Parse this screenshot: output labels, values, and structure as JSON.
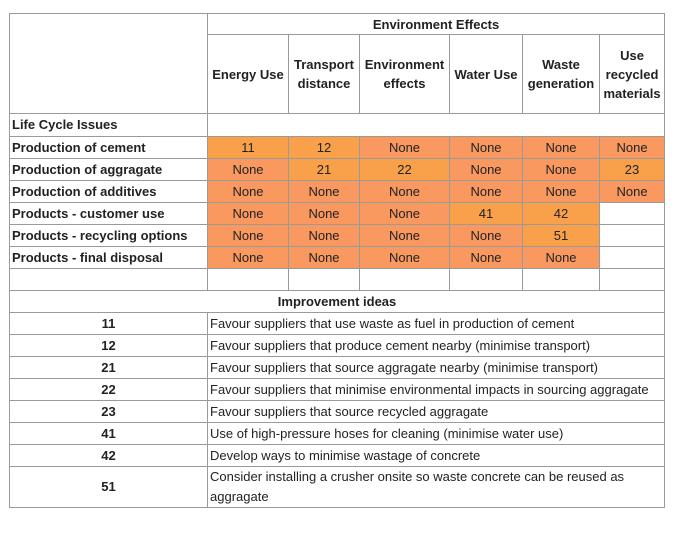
{
  "table_title": "Environment Effects",
  "columns": [
    {
      "lines": [
        "Energy Use"
      ]
    },
    {
      "lines": [
        "Transport",
        "distance"
      ]
    },
    {
      "lines": [
        "Environment",
        "effects"
      ]
    },
    {
      "lines": [
        "Water Use"
      ]
    },
    {
      "lines": [
        "Waste",
        "generation"
      ]
    },
    {
      "lines": [
        "Use",
        "recycled",
        "materials"
      ]
    }
  ],
  "section_label": "Life Cycle Issues",
  "colors": {
    "orange": "#f9a04b",
    "salmon": "#f9985f",
    "border": "#9a9a9a"
  },
  "rows": [
    {
      "label": "Production of cement",
      "cells": [
        {
          "text": "11",
          "color": "#f9a04b"
        },
        {
          "text": "12",
          "color": "#f9a04b"
        },
        {
          "text": "None",
          "color": "#f9985f"
        },
        {
          "text": "None",
          "color": "#f9985f"
        },
        {
          "text": "None",
          "color": "#f9985f"
        },
        {
          "text": "None",
          "color": "#f9985f"
        }
      ]
    },
    {
      "label": "Production of aggragate",
      "cells": [
        {
          "text": "None",
          "color": "#f9985f"
        },
        {
          "text": "21",
          "color": "#f9a04b"
        },
        {
          "text": "22",
          "color": "#f9a04b"
        },
        {
          "text": "None",
          "color": "#f9985f"
        },
        {
          "text": "None",
          "color": "#f9985f"
        },
        {
          "text": "23",
          "color": "#f9a04b"
        }
      ]
    },
    {
      "label": "Production of additives",
      "cells": [
        {
          "text": "None",
          "color": "#f9985f"
        },
        {
          "text": "None",
          "color": "#f9985f"
        },
        {
          "text": "None",
          "color": "#f9985f"
        },
        {
          "text": "None",
          "color": "#f9985f"
        },
        {
          "text": "None",
          "color": "#f9985f"
        },
        {
          "text": "None",
          "color": "#f9985f"
        }
      ]
    },
    {
      "label": "Products - customer use",
      "cells": [
        {
          "text": "None",
          "color": "#f9985f"
        },
        {
          "text": "None",
          "color": "#f9985f"
        },
        {
          "text": "None",
          "color": "#f9985f"
        },
        {
          "text": "41",
          "color": "#f9a04b"
        },
        {
          "text": "42",
          "color": "#f9a04b"
        },
        {
          "text": "",
          "color": "#ffffff"
        }
      ]
    },
    {
      "label": "Products - recycling options",
      "cells": [
        {
          "text": "None",
          "color": "#f9985f"
        },
        {
          "text": "None",
          "color": "#f9985f"
        },
        {
          "text": "None",
          "color": "#f9985f"
        },
        {
          "text": "None",
          "color": "#f9985f"
        },
        {
          "text": "51",
          "color": "#f9a04b"
        },
        {
          "text": "",
          "color": "#ffffff"
        }
      ]
    },
    {
      "label": "Products - final disposal",
      "cells": [
        {
          "text": "None",
          "color": "#f9985f"
        },
        {
          "text": "None",
          "color": "#f9985f"
        },
        {
          "text": "None",
          "color": "#f9985f"
        },
        {
          "text": "None",
          "color": "#f9985f"
        },
        {
          "text": "None",
          "color": "#f9985f"
        },
        {
          "text": "",
          "color": "#ffffff"
        }
      ]
    }
  ],
  "ideas_title": "Improvement ideas",
  "ideas": [
    {
      "code": "11",
      "text": "Favour suppliers that use waste as fuel in production of cement"
    },
    {
      "code": "12",
      "text": "Favour suppliers that produce cement nearby (minimise transport)"
    },
    {
      "code": "21",
      "text": "Favour suppliers that source aggragate nearby (minimise transport)"
    },
    {
      "code": "22",
      "text": "Favour suppliers that minimise environmental impacts in sourcing aggragate"
    },
    {
      "code": "23",
      "text": "Favour suppliers that source recycled aggragate"
    },
    {
      "code": "41",
      "text": "Use of high-pressure hoses for cleaning (minimise water use)"
    },
    {
      "code": "42",
      "text": "Develop ways to minimise wastage of concrete"
    },
    {
      "code": "51",
      "text": "Consider installing a crusher onsite so waste concrete can be reused as aggragate"
    }
  ]
}
